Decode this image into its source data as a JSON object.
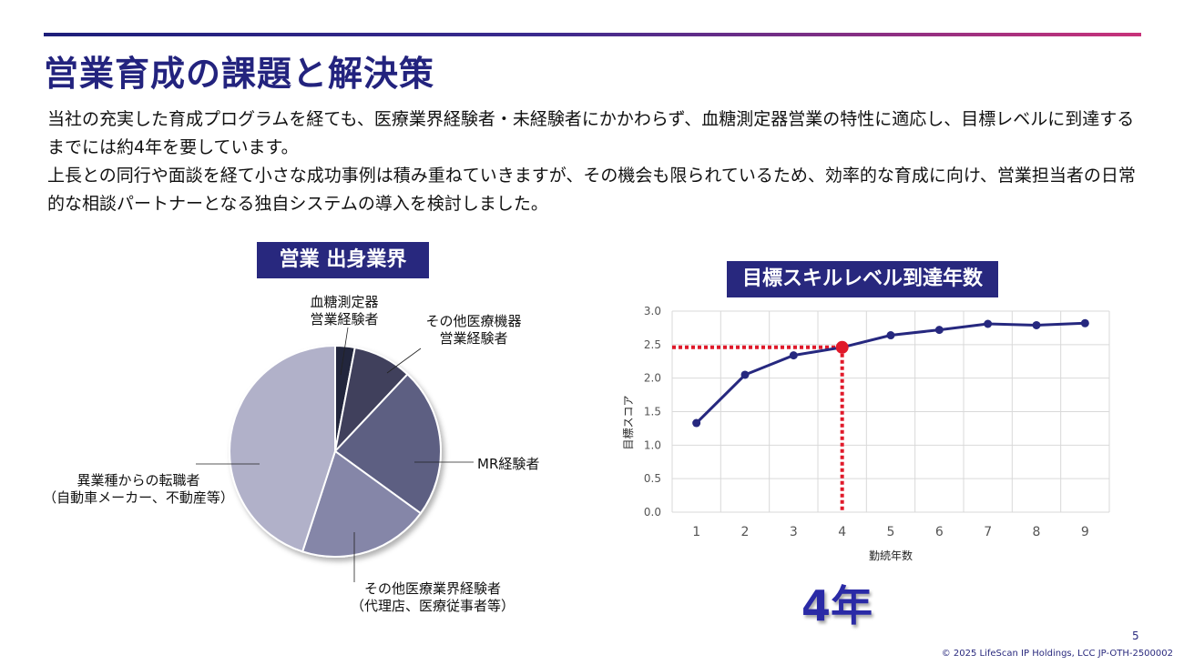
{
  "slide": {
    "title": "営業育成の課題と解決策",
    "paragraph_1": "当社の充実した育成プログラムを経ても、医療業界経験者・未経験者にかかわらず、血糖測定器営業の特性に適応し、目標レベルに到達するまでには約4年を要しています。",
    "paragraph_2": "上長との同行や面談を経て小さな成功事例は積み重ねていきますが、その機会も限られているため、効率的な育成に向け、営業担当者の日常的な相談パートナーとなる独自システムの導入を検討しました。",
    "big_label": "4年",
    "page_number": "5",
    "copyright": "© 2025 LifeScan IP Holdings, LCC JP-OTH-2500002",
    "accent_color": "#23237e"
  },
  "chart_data": [
    {
      "type": "pie",
      "title": "営業 出身業界",
      "slices": [
        {
          "label": "血糖測定器営業経験者",
          "label_lines": [
            "血糖測定器",
            "営業経験者"
          ],
          "value": 3,
          "color": "#24263d"
        },
        {
          "label": "その他医療機器営業経験者",
          "label_lines": [
            "その他医療機器",
            "営業経験者"
          ],
          "value": 9,
          "color": "#40415c"
        },
        {
          "label": "MR経験者",
          "label_lines": [
            "MR経験者"
          ],
          "value": 23,
          "color": "#5d5e82"
        },
        {
          "label": "その他医療業界経験者（代理店、医療従事者等）",
          "label_lines": [
            "その他医療業界経験者",
            "（代理店、医療従事者等）"
          ],
          "value": 20,
          "color": "#8586a8"
        },
        {
          "label": "異業種からの転職者（自動車メーカー、不動産等）",
          "label_lines": [
            "異業種からの転職者",
            "（自動車メーカー、不動産等）"
          ],
          "value": 45,
          "color": "#b1b1c9"
        }
      ]
    },
    {
      "type": "line",
      "title": "目標スキルレベル到達年数",
      "xlabel": "勤続年数",
      "ylabel": "目標スコア",
      "x": [
        1,
        2,
        3,
        4,
        5,
        6,
        7,
        8,
        9
      ],
      "values": [
        1.33,
        2.05,
        2.34,
        2.46,
        2.64,
        2.72,
        2.81,
        2.79,
        2.82
      ],
      "ylim": [
        0,
        3.0
      ],
      "yticks": [
        "0.0",
        "0.5",
        "1.0",
        "1.5",
        "2.0",
        "2.5",
        "3.0"
      ],
      "highlight": {
        "x": 4,
        "y": 2.46,
        "color": "#e0192a"
      },
      "line_color": "#26287f",
      "grid": true
    }
  ]
}
